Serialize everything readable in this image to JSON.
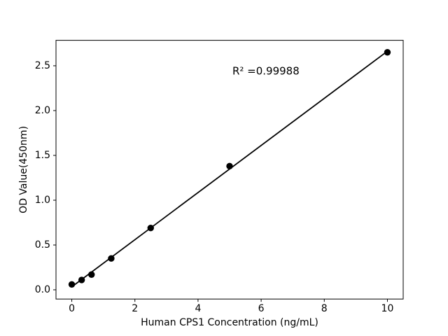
{
  "chart_data": {
    "type": "scatter",
    "title": "",
    "xlabel": "Human CPS1 Concentration (ng/mL)",
    "ylabel": "OD Value(450nm)",
    "annotation": "R² =0.99988",
    "annotation_xy": [
      6.15,
      2.44
    ],
    "x": [
      0,
      0.313,
      0.625,
      1.25,
      2.5,
      5,
      10
    ],
    "y": [
      0.06,
      0.11,
      0.17,
      0.35,
      0.69,
      1.38,
      2.65
    ],
    "fit_line": true,
    "xlim": [
      -0.5,
      10.5
    ],
    "ylim": [
      -0.103,
      2.784
    ],
    "xticks": [
      0,
      2,
      4,
      6,
      8,
      10
    ],
    "xtick_labels": [
      "0",
      "2",
      "4",
      "6",
      "8",
      "10"
    ],
    "yticks": [
      0.0,
      0.5,
      1.0,
      1.5,
      2.0,
      2.5
    ],
    "ytick_labels": [
      "0.0",
      "0.5",
      "1.0",
      "1.5",
      "2.0",
      "2.5"
    ],
    "grid": false,
    "legend": null,
    "marker_color": "#000000",
    "line_color": "#000000",
    "spine_color": "#000000",
    "background_color": "#ffffff"
  }
}
